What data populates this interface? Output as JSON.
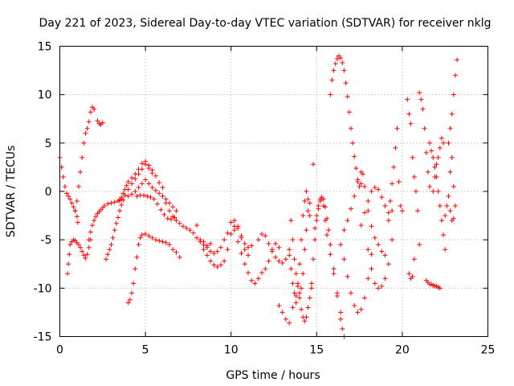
{
  "chart_data": {
    "type": "scatter",
    "title": "Day 221 of 2023, Sidereal Day-to-day VTEC variation (SDTVAR) for receiver nklg",
    "xlabel": "GPS time / hours",
    "ylabel": "SDTVAR / TECUs",
    "xlim": [
      0,
      25
    ],
    "ylim": [
      -15,
      15
    ],
    "x_ticks": [
      0,
      5,
      10,
      15,
      20,
      25
    ],
    "x_tick_labels": [
      "0",
      "5",
      "10",
      "15",
      "20",
      "25"
    ],
    "y_ticks": [
      -15,
      -10,
      -5,
      0,
      5,
      10,
      15
    ],
    "y_tick_labels": [
      "-15",
      "-10",
      "-5",
      "0",
      "5",
      "10",
      "15"
    ],
    "grid": true,
    "marker": "plus",
    "color": "#ff0000",
    "series": [
      {
        "name": "s1",
        "x": [
          0.0,
          0.1,
          0.2,
          0.3,
          0.4,
          0.5,
          0.6,
          0.7,
          0.8,
          0.9,
          1.0,
          1.05
        ],
        "y": [
          3.5,
          2.5,
          1.5,
          0.5,
          -0.2,
          -0.5,
          -0.8,
          -1.2,
          -1.6,
          -2.0,
          -2.6,
          -3.2
        ]
      },
      {
        "name": "s2",
        "x": [
          0.45,
          0.5,
          0.55,
          0.6,
          0.7,
          0.8,
          0.9,
          1.0,
          1.1,
          1.2,
          1.3,
          1.4,
          1.5,
          1.6,
          1.7,
          1.8
        ],
        "y": [
          -8.5,
          -7.5,
          -6.5,
          -5.5,
          -5.2,
          -5.0,
          -5.1,
          -5.3,
          -5.5,
          -5.8,
          -6.2,
          -6.6,
          -6.9,
          -6.5,
          -5.8,
          -5.0
        ]
      },
      {
        "name": "s3",
        "x": [
          0.9,
          1.0,
          1.1,
          1.2,
          1.3,
          1.4,
          1.5,
          1.6,
          1.7,
          1.8,
          1.9,
          2.0
        ],
        "y": [
          -2.0,
          -1.0,
          0.5,
          2.0,
          3.5,
          5.0,
          6.0,
          6.5,
          7.2,
          8.2,
          8.7,
          8.5
        ]
      },
      {
        "name": "s4",
        "x": [
          2.2,
          2.3,
          2.4,
          2.5
        ],
        "y": [
          7.3,
          7.0,
          6.9,
          7.1
        ]
      },
      {
        "name": "s5",
        "x": [
          1.7,
          1.8,
          1.9,
          2.0,
          2.1,
          2.2,
          2.3,
          2.4,
          2.5,
          2.6,
          2.8,
          3.0,
          3.2,
          3.4,
          3.5,
          3.6
        ],
        "y": [
          -5.0,
          -4.2,
          -3.5,
          -3.0,
          -2.6,
          -2.3,
          -2.1,
          -1.9,
          -1.7,
          -1.5,
          -1.3,
          -1.2,
          -1.1,
          -1.0,
          -0.9,
          -0.8
        ]
      },
      {
        "name": "s6",
        "x": [
          2.7,
          2.8,
          2.9,
          3.0,
          3.1,
          3.2,
          3.3,
          3.4,
          3.5,
          3.6,
          3.7,
          3.8,
          4.0,
          4.2,
          4.4,
          4.6,
          4.8,
          5.0,
          5.2,
          5.4
        ],
        "y": [
          -7.0,
          -6.5,
          -6.0,
          -5.5,
          -4.8,
          -4.0,
          -3.3,
          -2.7,
          -2.0,
          -1.4,
          -0.9,
          -0.4,
          0.2,
          0.8,
          1.3,
          1.8,
          2.3,
          2.8,
          2.4,
          1.9
        ]
      },
      {
        "name": "s7",
        "x": [
          3.5,
          3.6,
          3.7,
          3.8,
          3.9,
          4.0,
          4.2,
          4.4,
          4.6,
          4.8,
          5.0,
          5.2,
          5.4,
          5.6,
          5.8,
          6.0
        ],
        "y": [
          -0.9,
          -0.6,
          -0.2,
          0.2,
          0.6,
          1.0,
          1.4,
          1.8,
          2.3,
          2.9,
          3.1,
          2.7,
          2.2,
          1.6,
          0.9,
          0.4
        ]
      },
      {
        "name": "s8",
        "x": [
          4.0,
          4.2,
          4.4,
          4.6,
          4.8,
          5.0,
          5.2,
          5.4,
          5.6,
          5.8,
          6.0,
          6.2,
          6.4,
          6.6,
          6.8
        ],
        "y": [
          -0.5,
          -0.3,
          0.0,
          0.4,
          0.8,
          1.2,
          0.8,
          0.4,
          0.1,
          -0.2,
          -0.5,
          -0.8,
          -1.2,
          -1.6,
          -2.0
        ]
      },
      {
        "name": "s9",
        "x": [
          4.5,
          4.7,
          4.9,
          5.1,
          5.3,
          5.5,
          5.7,
          5.9,
          6.1,
          6.3,
          6.5,
          6.7
        ],
        "y": [
          -0.5,
          -0.4,
          -0.4,
          -0.5,
          -0.6,
          -0.8,
          -1.3,
          -1.9,
          -2.4,
          -2.8,
          -2.9,
          -2.7
        ]
      },
      {
        "name": "s10",
        "x": [
          4.0,
          4.1,
          4.2,
          4.3,
          4.4,
          4.5,
          4.6,
          4.7,
          4.8,
          5.0,
          5.2,
          5.4,
          5.6,
          5.8,
          6.0,
          6.2,
          6.4,
          6.6,
          6.8,
          7.0
        ],
        "y": [
          -11.5,
          -11.2,
          -10.5,
          -9.5,
          -8.0,
          -6.8,
          -5.5,
          -4.8,
          -4.5,
          -4.4,
          -4.6,
          -4.8,
          -5.0,
          -5.1,
          -5.2,
          -5.3,
          -5.5,
          -6.0,
          -6.3,
          -6.8
        ]
      },
      {
        "name": "s11",
        "x": [
          6.0,
          6.2,
          6.4,
          6.6,
          6.8,
          7.0,
          7.2,
          7.4,
          7.6,
          7.8,
          8.0,
          8.2,
          8.4,
          8.6,
          8.8
        ],
        "y": [
          -0.5,
          -1.2,
          -2.0,
          -2.6,
          -3.0,
          -3.3,
          -3.6,
          -3.8,
          -4.0,
          -4.3,
          -4.8,
          -5.2,
          -5.5,
          -5.6,
          -5.4
        ]
      },
      {
        "name": "s12",
        "x": [
          8.0,
          8.2,
          8.4,
          8.6,
          8.8,
          9.0,
          9.2,
          9.4,
          9.6,
          9.8,
          10.0,
          10.2,
          10.4,
          10.6,
          10.8,
          11.0
        ],
        "y": [
          -3.5,
          -5.0,
          -6.0,
          -6.6,
          -7.2,
          -7.6,
          -7.8,
          -7.6,
          -7.2,
          -6.0,
          -4.4,
          -3.6,
          -3.8,
          -4.8,
          -6.0,
          -6.6
        ]
      },
      {
        "name": "s13",
        "x": [
          8.4,
          8.6,
          8.8,
          9.0,
          9.2,
          9.4,
          9.6,
          9.8,
          10.0,
          10.2,
          10.4,
          10.6,
          10.8,
          11.0,
          11.2
        ],
        "y": [
          -5.2,
          -5.8,
          -6.2,
          -6.4,
          -6.2,
          -5.8,
          -5.0,
          -4.3,
          -3.2,
          -3.0,
          -3.6,
          -4.6,
          -5.4,
          -5.8,
          -5.6
        ]
      },
      {
        "name": "s14",
        "x": [
          10.2,
          10.4,
          10.6,
          10.8,
          11.0,
          11.2,
          11.4,
          11.6,
          11.8,
          12.0,
          12.2,
          12.4,
          12.6,
          12.8
        ],
        "y": [
          -4.0,
          -5.2,
          -6.4,
          -7.5,
          -8.4,
          -9.2,
          -9.5,
          -9.0,
          -8.4,
          -8.0,
          -7.2,
          -6.0,
          -5.4,
          -5.8
        ]
      },
      {
        "name": "s15",
        "x": [
          11.6,
          11.8,
          12.0,
          12.2,
          12.4,
          12.6,
          12.8,
          13.0,
          13.2,
          13.4
        ],
        "y": [
          -5.0,
          -4.4,
          -4.6,
          -5.4,
          -6.2,
          -6.8,
          -7.2,
          -7.4,
          -7.0,
          -6.6
        ]
      },
      {
        "name": "s16",
        "x": [
          12.8,
          13.0,
          13.2,
          13.4,
          13.6,
          13.8
        ],
        "y": [
          -11.8,
          -12.5,
          -13.2,
          -13.6,
          -12.0,
          -11.5
        ]
      },
      {
        "name": "s17",
        "x": [
          13.4,
          13.5,
          13.6,
          13.7,
          13.8,
          13.9,
          14.0,
          14.1,
          14.2,
          14.3,
          14.4,
          14.5,
          14.6
        ],
        "y": [
          -6.0,
          -8.0,
          -9.5,
          -10.5,
          -10.8,
          -9.5,
          -7.5,
          -5.0,
          -2.5,
          -1.0,
          0.0,
          -0.8,
          -2.5
        ]
      },
      {
        "name": "s18",
        "x": [
          13.5,
          13.6,
          13.7,
          13.8,
          13.9,
          14.0,
          14.1,
          14.2,
          14.3,
          14.4,
          14.5,
          14.6
        ],
        "y": [
          -3.0,
          -5.0,
          -7.0,
          -8.5,
          -9.8,
          -10.5,
          -10.0,
          -8.5,
          -6.0,
          -4.0,
          -2.0,
          -1.2
        ]
      },
      {
        "name": "s19",
        "x": [
          14.0,
          14.1,
          14.2,
          14.3,
          14.4,
          14.5,
          14.6,
          14.7
        ],
        "y": [
          -11.0,
          -12.2,
          -13.0,
          -13.4,
          -13.0,
          -12.0,
          -11.0,
          -10.0
        ]
      },
      {
        "name": "s20",
        "x": [
          14.7,
          14.8,
          14.9,
          15.0,
          15.1,
          15.2,
          15.3,
          15.4,
          15.5,
          15.6,
          15.8,
          16.0,
          16.2,
          16.4
        ],
        "y": [
          -9.5,
          -7.0,
          -5.0,
          -3.0,
          -1.8,
          -1.0,
          -0.8,
          -1.5,
          -3.0,
          -4.5,
          -6.5,
          -8.5,
          -10.8,
          -12.5
        ]
      },
      {
        "name": "s21",
        "x": [
          14.9,
          15.0,
          15.1,
          15.2,
          15.3,
          15.4,
          15.5,
          15.6,
          15.7,
          15.8,
          16.0,
          16.2,
          16.4,
          16.5,
          16.6
        ],
        "y": [
          -3.8,
          -2.5,
          -1.5,
          -0.8,
          -0.6,
          -0.8,
          -1.6,
          -2.8,
          -4.0,
          -5.5,
          -8.0,
          -10.5,
          -13.2,
          -14.2,
          -15.0
        ]
      },
      {
        "name": "s22",
        "x": [
          14.8
        ],
        "y": [
          2.8
        ]
      },
      {
        "name": "s23",
        "x": [
          15.8,
          15.9,
          16.0,
          16.1,
          16.2,
          16.3,
          16.4,
          16.5,
          16.6,
          16.7,
          16.8,
          16.9,
          17.0,
          17.1,
          17.2,
          17.3,
          17.4,
          17.5,
          17.6,
          17.7
        ],
        "y": [
          10.0,
          11.5,
          12.5,
          13.2,
          13.7,
          14.0,
          13.8,
          13.3,
          12.5,
          11.2,
          9.8,
          8.2,
          6.5,
          5.0,
          3.6,
          2.4,
          1.2,
          0.5,
          0.8,
          1.8
        ]
      },
      {
        "name": "s24",
        "x": [
          16.4,
          16.6,
          16.8,
          17.0,
          17.2,
          17.4,
          17.6,
          17.8,
          18.0,
          18.2
        ],
        "y": [
          -5.5,
          -7.0,
          -8.8,
          -10.5,
          -11.8,
          -12.5,
          -12.2,
          -11.0,
          -9.0,
          -6.5
        ]
      },
      {
        "name": "s25",
        "x": [
          16.6,
          16.8,
          17.0,
          17.2,
          17.4,
          17.6,
          17.8,
          18.0,
          18.2,
          18.4,
          18.6,
          18.8,
          19.0
        ],
        "y": [
          -4.0,
          -3.0,
          -1.8,
          -0.5,
          1.0,
          2.0,
          0.5,
          -2.0,
          -3.6,
          -4.8,
          -5.5,
          -6.2,
          -6.6
        ]
      },
      {
        "name": "s26",
        "x": [
          17.6,
          17.8,
          18.0,
          18.2,
          18.4,
          18.6,
          18.8,
          19.0,
          19.2,
          19.4
        ],
        "y": [
          -3.5,
          -2.2,
          -1.0,
          0.0,
          0.4,
          0.2,
          -0.6,
          -1.5,
          -2.2,
          -2.0
        ]
      },
      {
        "name": "s27",
        "x": [
          18.0,
          18.2,
          18.4,
          18.6,
          18.8,
          19.0,
          19.2,
          19.4
        ],
        "y": [
          -6.0,
          -8.0,
          -9.5,
          -10.0,
          -9.8,
          -9.0,
          -7.5,
          -5.0
        ]
      },
      {
        "name": "s28",
        "x": [
          19.2,
          19.3,
          19.4,
          19.5,
          19.6,
          19.7,
          19.8,
          19.9,
          20.0
        ],
        "y": [
          -3.0,
          -1.0,
          0.8,
          2.5,
          4.5,
          6.5,
          1.0,
          -1.5,
          -2.0
        ]
      },
      {
        "name": "s29",
        "x": [
          20.3,
          20.4,
          20.5,
          20.6,
          20.7,
          20.8,
          20.9,
          21.0
        ],
        "y": [
          9.5,
          8.0,
          7.0,
          3.5,
          1.5,
          0.0,
          -2.0,
          -5.5
        ]
      },
      {
        "name": "s30",
        "x": [
          20.4,
          20.5,
          20.6,
          20.7
        ],
        "y": [
          -8.5,
          -9.0,
          -8.8,
          -7.0
        ]
      },
      {
        "name": "s31",
        "x": [
          21.0,
          21.1,
          21.2,
          21.3,
          21.4,
          21.5,
          21.6
        ],
        "y": [
          10.2,
          9.5,
          8.5,
          6.5,
          4.0,
          2.0,
          0.5
        ]
      },
      {
        "name": "s32",
        "x": [
          21.4,
          21.5,
          21.6,
          21.7,
          21.8,
          21.9,
          22.0,
          22.1,
          22.2
        ],
        "y": [
          -9.2,
          -9.4,
          -9.6,
          -9.6,
          -9.7,
          -9.8,
          -9.8,
          -9.9,
          -10.0
        ]
      },
      {
        "name": "s33",
        "x": [
          21.6,
          21.7,
          21.8,
          21.9,
          22.0,
          22.1,
          22.2,
          22.3,
          22.4,
          22.5
        ],
        "y": [
          5.0,
          4.2,
          3.5,
          2.5,
          1.5,
          0.0,
          -1.5,
          -3.0,
          -4.5,
          -6.0
        ]
      },
      {
        "name": "s34",
        "x": [
          21.8,
          21.9,
          22.0,
          22.1,
          22.2,
          22.3,
          22.4
        ],
        "y": [
          0.0,
          1.5,
          2.8,
          3.5,
          4.5,
          5.5,
          5.0
        ]
      },
      {
        "name": "s35",
        "x": [
          22.5,
          22.6,
          22.7,
          22.8,
          22.9,
          23.0
        ],
        "y": [
          -2.5,
          -1.5,
          -0.5,
          2.0,
          3.5,
          0.5
        ]
      },
      {
        "name": "s36",
        "x": [
          22.7,
          22.8,
          22.9,
          23.0,
          23.1,
          23.2
        ],
        "y": [
          5.0,
          6.5,
          8.0,
          10.0,
          12.0,
          13.6
        ]
      },
      {
        "name": "s37",
        "x": [
          22.8,
          22.9,
          23.0,
          23.1
        ],
        "y": [
          -2.0,
          -3.0,
          -2.8,
          -1.5
        ]
      }
    ]
  }
}
